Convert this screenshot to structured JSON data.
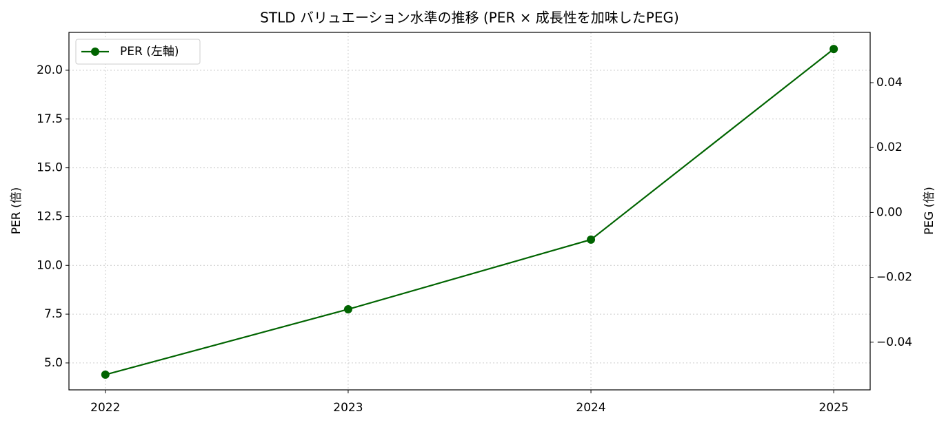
{
  "chart_data": {
    "type": "line",
    "title": "STLD バリュエーション水準の推移 (PER × 成長性を加味したPEG)",
    "ylabel": "PER (倍)",
    "y2label": "PEG (倍)",
    "x": [
      2022,
      2023,
      2024,
      2025
    ],
    "xlim": [
      2021.85,
      2025.15
    ],
    "xticks": [
      2022,
      2023,
      2024,
      2025
    ],
    "series": [
      {
        "name": "PER (左軸)",
        "color": "#006400",
        "values": [
          4.4,
          7.75,
          11.32,
          21.09
        ]
      }
    ],
    "ylim": [
      3.62,
      21.94
    ],
    "yticks": [
      {
        "value": 5,
        "label": "5.0"
      },
      7.5,
      {
        "value": 10,
        "label": "10.0"
      },
      12.5,
      {
        "value": 15,
        "label": "15.0"
      },
      17.5,
      {
        "value": 20,
        "label": "20.0"
      }
    ],
    "y2lim": [
      -0.0547,
      0.0555
    ],
    "y2ticks": [
      {
        "value": -0.04,
        "label": "−0.04"
      },
      {
        "value": -0.02,
        "label": "−0.02"
      },
      {
        "value": 0,
        "label": "0.00"
      },
      0.02,
      0.04
    ],
    "grid": true,
    "legend": "upper left"
  }
}
